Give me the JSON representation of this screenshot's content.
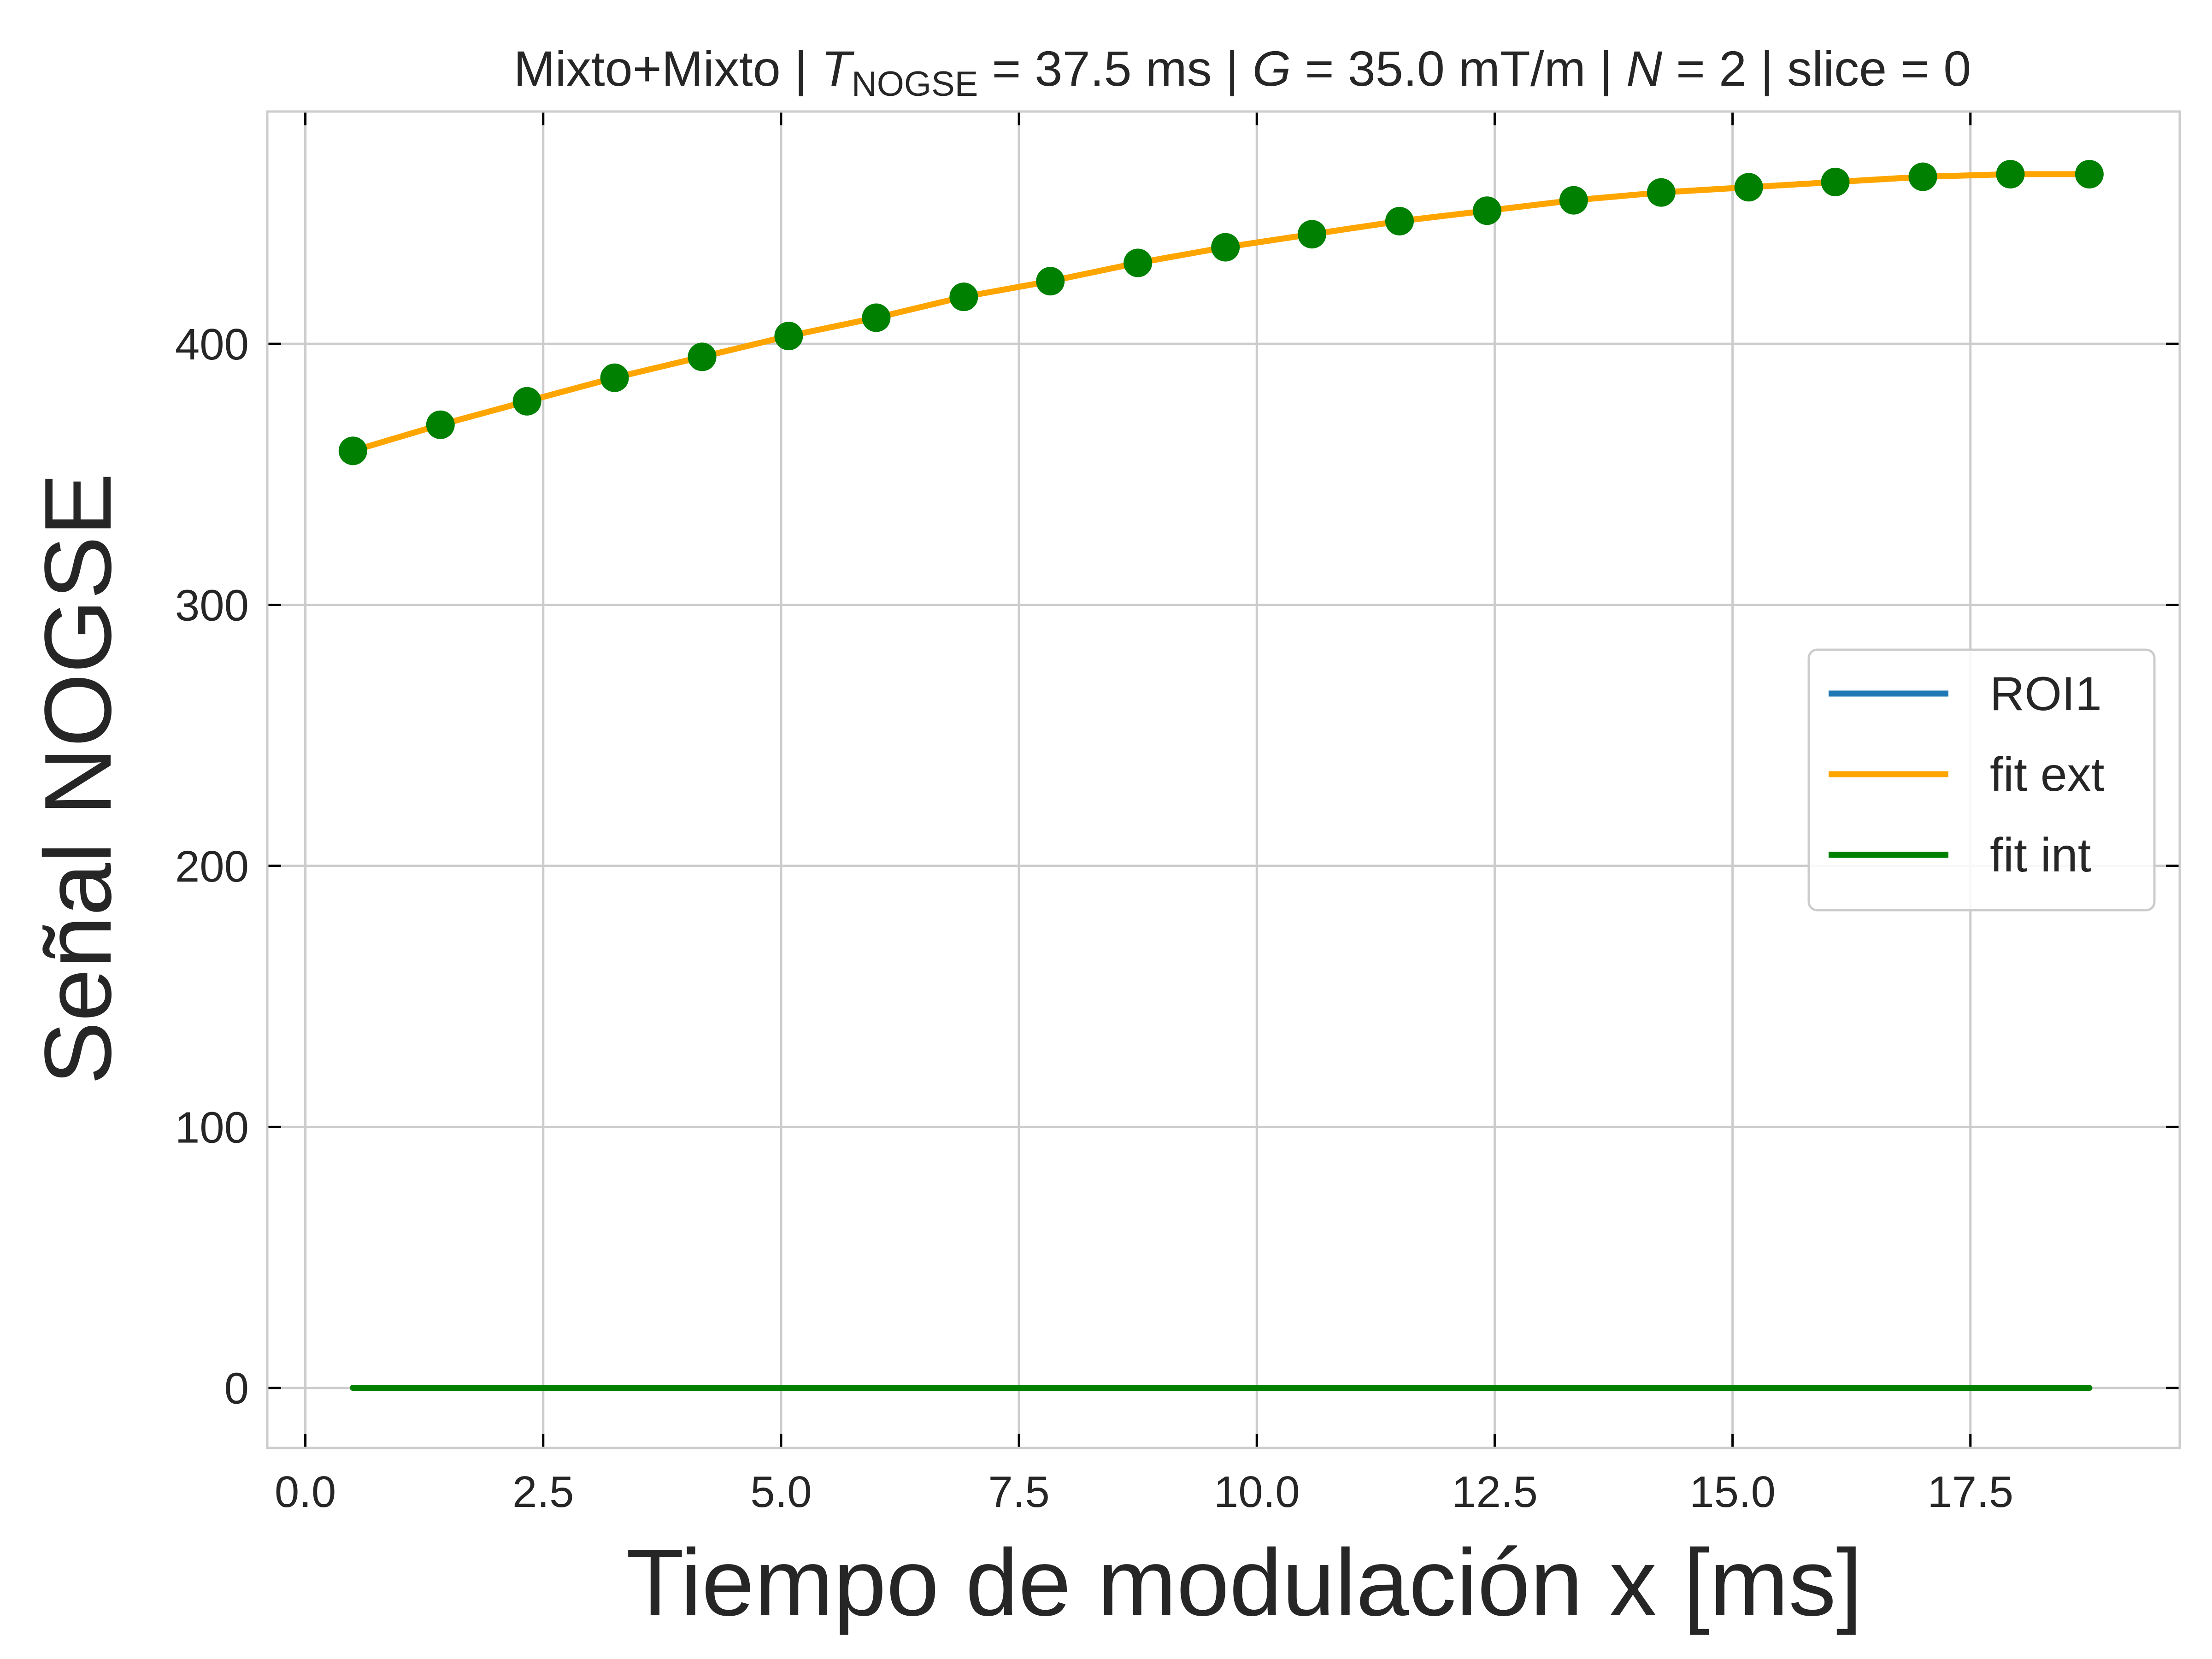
{
  "chart_data": {
    "type": "line",
    "title_parts": [
      "Mixto+Mixto | ",
      "T",
      "NOGSE",
      " = 37.5 ms | ",
      "G",
      " = 35.0 mT/m | ",
      "N",
      " = 2 | slice = 0"
    ],
    "xlabel": "Tiempo de modulación x [ms]",
    "ylabel": "Señal NOGSE",
    "xlim": [
      -0.4,
      19.7
    ],
    "ylim": [
      -23,
      489
    ],
    "xticks": [
      0.0,
      2.5,
      5.0,
      7.5,
      10.0,
      12.5,
      15.0,
      17.5
    ],
    "xtick_labels": [
      "0.0",
      "2.5",
      "5.0",
      "7.5",
      "10.0",
      "12.5",
      "15.0",
      "17.5"
    ],
    "yticks": [
      0,
      100,
      200,
      300,
      400
    ],
    "ytick_labels": [
      "0",
      "100",
      "200",
      "300",
      "400"
    ],
    "grid": true,
    "legend_position": "center-right",
    "series": [
      {
        "name": "ROI1",
        "style": "line",
        "color": "#1f77b4",
        "x": [],
        "values": []
      },
      {
        "name": "fit ext",
        "style": "line",
        "color": "#ffa500",
        "x": [
          0.5,
          1.42,
          2.33,
          3.25,
          4.17,
          5.08,
          6.0,
          6.92,
          7.83,
          8.75,
          9.67,
          10.58,
          11.5,
          12.42,
          13.33,
          14.25,
          15.17,
          16.08,
          17.0,
          17.92,
          18.75
        ],
        "values": [
          359,
          369,
          378,
          387,
          395,
          403,
          410,
          418,
          424,
          431,
          437,
          442,
          447,
          451,
          455,
          458,
          460,
          462,
          464,
          465,
          465
        ]
      },
      {
        "name": "fit int",
        "style": "line",
        "color": "#008000",
        "x": [
          0.5,
          18.75
        ],
        "values": [
          0,
          0
        ]
      },
      {
        "name": "",
        "style": "markers",
        "color": "#008000",
        "x": [
          0.5,
          1.42,
          2.33,
          3.25,
          4.17,
          5.08,
          6.0,
          6.92,
          7.83,
          8.75,
          9.67,
          10.58,
          11.5,
          12.42,
          13.33,
          14.25,
          15.17,
          16.08,
          17.0,
          17.92,
          18.75
        ],
        "values": [
          359,
          369,
          378,
          387,
          395,
          403,
          410,
          418,
          424,
          431,
          437,
          442,
          447,
          451,
          455,
          458,
          460,
          462,
          464,
          465,
          465
        ]
      }
    ]
  }
}
